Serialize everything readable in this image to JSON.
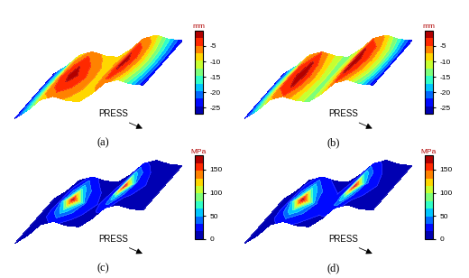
{
  "chart_data": [
    {
      "type": "contour",
      "label": "(a)",
      "annotation": "PRESS",
      "tick_labels": false,
      "colorbar": {
        "label": "mm",
        "range": [
          -27,
          0
        ],
        "ticks": [
          -25,
          -20,
          -15,
          -10,
          -5
        ]
      },
      "cells": [
        [
          -25,
          -17,
          -9,
          -6,
          -8,
          -9,
          -8,
          -6,
          -9,
          -17,
          -25
        ],
        [
          -24,
          -15,
          -6,
          -3,
          -6,
          -9,
          -6,
          -3,
          -6,
          -15,
          -24
        ],
        [
          -24,
          -14,
          -5,
          -1,
          -5,
          -9,
          -5,
          -1,
          -5,
          -14,
          -24
        ],
        [
          -24,
          -15,
          -6,
          -3,
          -6,
          -9,
          -6,
          -3,
          -6,
          -15,
          -24
        ],
        [
          -25,
          -17,
          -9,
          -6,
          -8,
          -9,
          -8,
          -6,
          -9,
          -17,
          -25
        ]
      ]
    },
    {
      "type": "contour",
      "label": "(b)",
      "annotation": "PRESS",
      "tick_labels": false,
      "colorbar": {
        "label": "mm",
        "range": [
          -27,
          0
        ],
        "ticks": [
          -25,
          -20,
          -15,
          -10,
          -5
        ]
      },
      "cells": [
        [
          -25,
          -16,
          -8,
          -5,
          -10,
          -14,
          -10,
          -5,
          -8,
          -16,
          -25
        ],
        [
          -24,
          -13,
          -5,
          -2,
          -9,
          -14,
          -9,
          -2,
          -5,
          -13,
          -24
        ],
        [
          -24,
          -12,
          -4,
          -1,
          -8,
          -14,
          -8,
          -1,
          -4,
          -12,
          -24
        ],
        [
          -24,
          -13,
          -5,
          -2,
          -9,
          -14,
          -9,
          -2,
          -5,
          -13,
          -24
        ],
        [
          -25,
          -16,
          -8,
          -5,
          -10,
          -14,
          -10,
          -5,
          -8,
          -16,
          -25
        ]
      ]
    },
    {
      "type": "contour",
      "label": "(c)",
      "annotation": "PRESS",
      "tick_labels": false,
      "colorbar": {
        "label": "MPa",
        "range": [
          0,
          180
        ],
        "ticks": [
          0,
          50,
          100,
          150
        ]
      },
      "cells": [
        [
          0,
          5,
          10,
          20,
          12,
          10,
          12,
          20,
          10,
          5,
          0
        ],
        [
          0,
          8,
          20,
          60,
          20,
          12,
          20,
          60,
          20,
          8,
          0
        ],
        [
          0,
          10,
          30,
          175,
          30,
          15,
          30,
          175,
          30,
          10,
          0
        ],
        [
          0,
          8,
          20,
          60,
          20,
          12,
          20,
          60,
          20,
          8,
          0
        ],
        [
          0,
          5,
          10,
          20,
          12,
          10,
          12,
          20,
          10,
          5,
          0
        ]
      ]
    },
    {
      "type": "contour",
      "label": "(d)",
      "annotation": "PRESS",
      "tick_labels": false,
      "colorbar": {
        "label": "MPa",
        "range": [
          0,
          180
        ],
        "ticks": [
          0,
          50,
          100,
          150
        ]
      },
      "cells": [
        [
          0,
          6,
          12,
          22,
          14,
          12,
          14,
          22,
          12,
          6,
          0
        ],
        [
          0,
          9,
          22,
          65,
          24,
          16,
          24,
          65,
          22,
          9,
          0
        ],
        [
          0,
          12,
          35,
          178,
          35,
          20,
          35,
          178,
          35,
          12,
          0
        ],
        [
          0,
          9,
          22,
          65,
          24,
          16,
          24,
          65,
          22,
          9,
          0
        ],
        [
          0,
          6,
          12,
          22,
          14,
          12,
          14,
          22,
          12,
          6,
          0
        ]
      ]
    }
  ]
}
